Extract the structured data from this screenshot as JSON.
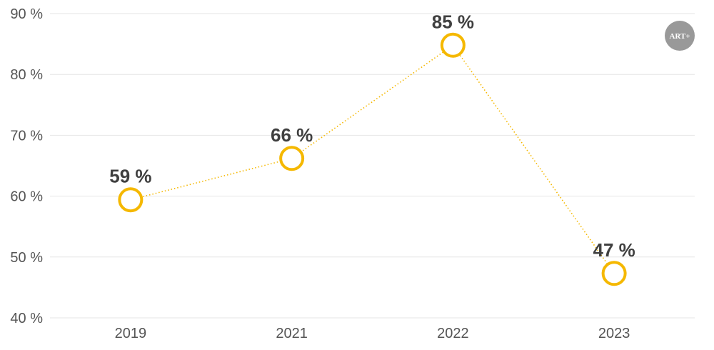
{
  "chart_data": {
    "type": "line",
    "categories": [
      "2019",
      "2021",
      "2022",
      "2023"
    ],
    "series": [
      {
        "values": [
          59.4,
          66.2,
          84.8,
          47.3
        ]
      }
    ],
    "data_labels": [
      "59 %",
      "66 %",
      "85 %",
      "47 %"
    ],
    "y_ticks": [
      "40 %",
      "50 %",
      "60 %",
      "70 %",
      "80 %",
      "90 %"
    ],
    "y_tick_values": [
      40,
      50,
      60,
      70,
      80,
      90
    ],
    "ylim": [
      40,
      90
    ],
    "grid": "horizontal",
    "line_style": "dotted",
    "colors": {
      "series": "#F5B800",
      "grid": "#E6E6E6",
      "label": "#404040",
      "tick": "#555555"
    },
    "logo": {
      "text": "ART+",
      "color": "#999999"
    }
  }
}
